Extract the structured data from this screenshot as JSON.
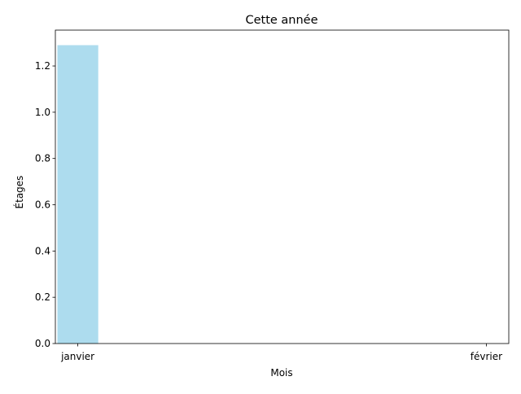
{
  "chart_data": {
    "type": "bar",
    "title": "Cette année",
    "xlabel": "Mois",
    "ylabel": "Étages",
    "categories": [
      "janvier",
      "février"
    ],
    "x": [
      0,
      1
    ],
    "values": [
      1.29,
      0
    ],
    "ylim": [
      0,
      1.355
    ],
    "xlim": [
      -0.055,
      1.055
    ],
    "yticks": [
      0.0,
      0.2,
      0.4,
      0.6,
      0.8,
      1.0,
      1.2
    ],
    "ytick_labels": [
      "0.0",
      "0.2",
      "0.4",
      "0.6",
      "0.8",
      "1.0",
      "1.2"
    ],
    "bar_width": 0.1,
    "bar_color": "#ADDCEE",
    "grid": false,
    "legend": "none"
  }
}
